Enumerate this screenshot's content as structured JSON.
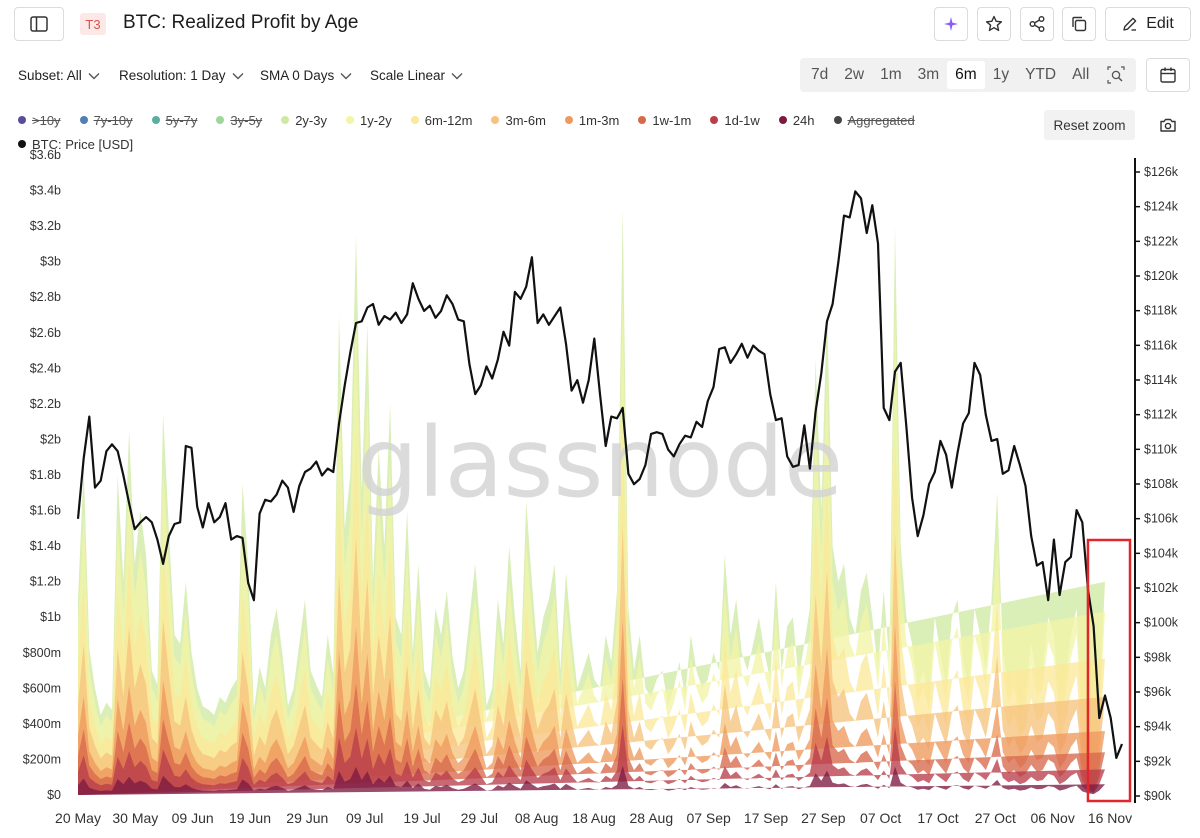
{
  "header": {
    "badge": "T3",
    "title": "BTC: Realized Profit by Age",
    "edit_label": "Edit",
    "icons": [
      "sidebar-toggle-icon",
      "sparkle-icon",
      "star-icon",
      "share-icon",
      "copy-icon",
      "pencil-icon"
    ]
  },
  "controls": {
    "subset": "Subset: All",
    "resolution": "Resolution: 1 Day",
    "sma": "SMA 0 Days",
    "scale": "Scale Linear",
    "ranges": [
      "7d",
      "2w",
      "1m",
      "3m",
      "6m",
      "1y",
      "YTD",
      "All"
    ],
    "active_range": "6m"
  },
  "legend": {
    "row1": [
      {
        "label": ">10y",
        "color": "#5b4b9a",
        "off": true
      },
      {
        "label": "7y-10y",
        "color": "#4f7fb5",
        "off": true
      },
      {
        "label": "5y-7y",
        "color": "#5aae9e",
        "off": true
      },
      {
        "label": "3y-5y",
        "color": "#9fd69a",
        "off": true
      },
      {
        "label": "2y-3y",
        "color": "#cfe9a3",
        "off": false
      },
      {
        "label": "1y-2y",
        "color": "#f2f5a6",
        "off": false
      },
      {
        "label": "6m-12m",
        "color": "#fbe89a",
        "off": false
      },
      {
        "label": "3m-6m",
        "color": "#f6c37e",
        "off": false
      },
      {
        "label": "1m-3m",
        "color": "#ee9a5e",
        "off": false
      },
      {
        "label": "1w-1m",
        "color": "#d9694b",
        "off": false
      },
      {
        "label": "1d-1w",
        "color": "#b93e4a",
        "off": false
      },
      {
        "label": "24h",
        "color": "#7d1a41",
        "off": false
      },
      {
        "label": "Aggregated",
        "color": "#444444",
        "off": true
      }
    ],
    "row2": [
      {
        "label": "BTC: Price [USD]",
        "color": "#111111",
        "off": false
      }
    ],
    "reset_zoom": "Reset zoom"
  },
  "watermark": "glassnode",
  "chart_data": {
    "type": "area",
    "title": "BTC: Realized Profit by Age",
    "y_left_ticks": [
      "$0",
      "$200m",
      "$400m",
      "$600m",
      "$800m",
      "$1b",
      "$1.2b",
      "$1.4b",
      "$1.6b",
      "$1.8b",
      "$2b",
      "$2.2b",
      "$2.4b",
      "$2.6b",
      "$2.8b",
      "$3b",
      "$3.2b",
      "$3.4b",
      "$3.6b"
    ],
    "y_right_ticks": [
      "$90k",
      "$92k",
      "$94k",
      "$96k",
      "$98k",
      "$100k",
      "$102k",
      "$104k",
      "$106k",
      "$108k",
      "$110k",
      "$112k",
      "$114k",
      "$116k",
      "$118k",
      "$120k",
      "$122k",
      "$124k",
      "$126k"
    ],
    "x_ticks": [
      "20 May",
      "30 May",
      "09 Jun",
      "19 Jun",
      "29 Jun",
      "09 Jul",
      "19 Jul",
      "29 Jul",
      "08 Aug",
      "18 Aug",
      "28 Aug",
      "07 Sep",
      "17 Sep",
      "27 Sep",
      "07 Oct",
      "17 Oct",
      "27 Oct",
      "06 Nov",
      "16 Nov"
    ],
    "ylim_left": [
      0,
      3600000000
    ],
    "ylim_right": [
      90000,
      127000
    ],
    "price_series": {
      "name": "BTC: Price [USD]",
      "color": "#111111",
      "values": [
        106000,
        109500,
        111900,
        107800,
        108200,
        109900,
        110300,
        109900,
        108500,
        106900,
        105400,
        105800,
        106100,
        105800,
        104800,
        103400,
        105000,
        105700,
        105800,
        110200,
        110100,
        106700,
        105500,
        106900,
        105800,
        106100,
        106900,
        104800,
        105000,
        104900,
        102300,
        101300,
        106300,
        107100,
        107000,
        107400,
        108200,
        107800,
        106400,
        107900,
        108700,
        108900,
        109300,
        108500,
        108900,
        108700,
        111500,
        113700,
        115600,
        117300,
        117400,
        118200,
        118400,
        117200,
        117700,
        117500,
        117900,
        117300,
        117800,
        119600,
        118700,
        118000,
        118300,
        117600,
        118000,
        118900,
        118400,
        117500,
        117400,
        114900,
        113200,
        113700,
        114800,
        114100,
        115200,
        116800,
        116000,
        119100,
        118700,
        119400,
        121100,
        117300,
        117800,
        117200,
        117700,
        118200,
        116100,
        113400,
        114000,
        112700,
        114000,
        116400,
        113200,
        110200,
        111900,
        111800,
        112400,
        108600,
        108000,
        108300,
        109100,
        110900,
        111000,
        110900,
        110000,
        109600,
        110300,
        110800,
        110700,
        111600,
        111300,
        112800,
        113600,
        115800,
        115900,
        115000,
        115500,
        116100,
        115300,
        116000,
        115700,
        115500,
        113200,
        111700,
        111800,
        109600,
        109000,
        109100,
        111400,
        108900,
        112200,
        114400,
        117400,
        118400,
        120800,
        123500,
        123400,
        124900,
        124500,
        122500,
        124100,
        121900,
        112400,
        111700,
        114500,
        115000,
        111300,
        107200,
        105000,
        106200,
        108000,
        108700,
        110500,
        109700,
        107800,
        109800,
        111500,
        112100,
        115000,
        114300,
        112000,
        110500,
        110600,
        108600,
        108800,
        110200,
        109100,
        107900,
        105000,
        103300,
        103500,
        101300,
        104800,
        101600,
        103500,
        103800,
        106500,
        105800,
        101900,
        99800,
        94500,
        95800,
        94500,
        92200,
        93000
      ]
    },
    "profit_series": [
      {
        "name": "24h",
        "color": "#7d1a41"
      },
      {
        "name": "1d-1w",
        "color": "#b93e4a"
      },
      {
        "name": "1w-1m",
        "color": "#d9694b"
      },
      {
        "name": "1m-3m",
        "color": "#ee9a5e"
      },
      {
        "name": "3m-6m",
        "color": "#f6c37e"
      },
      {
        "name": "6m-12m",
        "color": "#fbe89a"
      },
      {
        "name": "1y-2y",
        "color": "#f2f5a6"
      },
      {
        "name": "2y-3y",
        "color": "#cfe9a3"
      }
    ],
    "profit_total_values": [
      1100000000,
      1850000000,
      820000000,
      600000000,
      450000000,
      520000000,
      480000000,
      1800000000,
      1200000000,
      2050000000,
      1300000000,
      1600000000,
      1350000000,
      700000000,
      620000000,
      2150000000,
      1500000000,
      900000000,
      850000000,
      1200000000,
      800000000,
      600000000,
      500000000,
      480000000,
      450000000,
      550000000,
      520000000,
      600000000,
      650000000,
      1750000000,
      1300000000,
      480000000,
      720000000,
      600000000,
      900000000,
      1050000000,
      800000000,
      500000000,
      600000000,
      850000000,
      1100000000,
      700000000,
      620000000,
      550000000,
      900000000,
      680000000,
      2700000000,
      1500000000,
      1800000000,
      3150000000,
      1700000000,
      2650000000,
      1200000000,
      1950000000,
      1400000000,
      2200000000,
      1000000000,
      900000000,
      1600000000,
      800000000,
      1300000000,
      700000000,
      600000000,
      1050000000,
      900000000,
      1150000000,
      780000000,
      600000000,
      700000000,
      1000000000,
      1300000000,
      900000000,
      500000000,
      600000000,
      1100000000,
      850000000,
      1400000000,
      1000000000,
      700000000,
      1650000000,
      1200000000,
      800000000,
      1000000000,
      1100000000,
      1300000000,
      700000000,
      1250000000,
      900000000,
      600000000,
      700000000,
      800000000,
      650000000,
      600000000,
      900000000,
      750000000,
      1150000000,
      3300000000,
      1050000000,
      700000000,
      900000000,
      600000000,
      550000000,
      650000000,
      700000000,
      500000000,
      600000000,
      750000000,
      550000000,
      900000000,
      700000000,
      600000000,
      650000000,
      800000000,
      700000000,
      1350000000,
      900000000,
      1100000000,
      800000000,
      700000000,
      850000000,
      1000000000,
      800000000,
      650000000,
      1200000000,
      700000000,
      950000000,
      1000000000,
      650000000,
      850000000,
      1050000000,
      2450000000,
      1600000000,
      2750000000,
      1400000000,
      1200000000,
      1300000000,
      1000000000,
      900000000,
      1150000000,
      1250000000,
      1000000000,
      700000000,
      1150000000,
      750000000,
      3200000000,
      1400000000,
      1000000000,
      850000000,
      600000000,
      700000000,
      550000000,
      1000000000,
      800000000,
      600000000,
      1000000000,
      1100000000,
      750000000,
      600000000,
      1050000000,
      900000000,
      700000000,
      1100000000,
      1700000000,
      800000000,
      600000000,
      700000000,
      500000000,
      600000000,
      850000000,
      650000000,
      700000000,
      1000000000,
      900000000,
      500000000,
      650000000,
      900000000,
      1050000000,
      400000000,
      200000000,
      100000000,
      500000000,
      1200000000
    ],
    "profit_bands_share": [
      0.05,
      0.12,
      0.2,
      0.3,
      0.46,
      0.64,
      0.86,
      1.0
    ],
    "highlight_box": {
      "x_from": "14 Nov",
      "x_to": "20 Nov",
      "color": "#e3262b"
    }
  }
}
